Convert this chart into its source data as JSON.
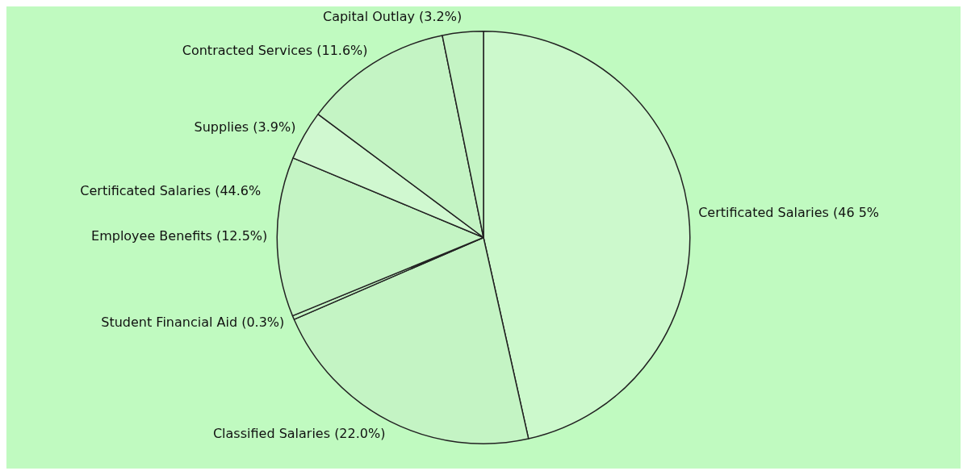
{
  "chart_data": {
    "type": "pie",
    "categories": [
      "Certificated Salaries",
      "Classified Salaries",
      "Student Financial Aid",
      "Employee Benefits",
      "Supplies",
      "Contracted Services",
      "Capital Outlay"
    ],
    "values": [
      46.5,
      22.0,
      0.3,
      12.5,
      3.9,
      11.6,
      3.2
    ],
    "colors": [
      "#ccf9cc",
      "#c4f4c4",
      "#c4f4c4",
      "#c4f4c4",
      "#d0f8d0",
      "#c4f4c4",
      "#c4f4c4"
    ],
    "value_labels": [
      "(46 5%",
      "(22.0%)",
      "(0.3%)",
      "(12.5%)",
      "(3.9%)",
      "(11.6%)",
      "(3.2%)"
    ],
    "annotations": [
      "Certificated Salaries (44.6%"
    ],
    "legend": false
  }
}
